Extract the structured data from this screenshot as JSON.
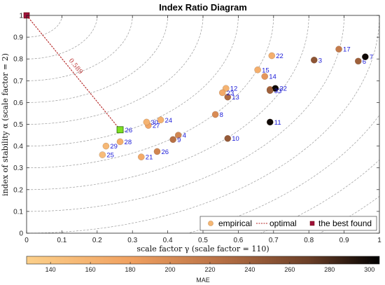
{
  "chart_data": {
    "type": "scatter",
    "title": "Index Ratio Diagram",
    "xlabel": "scale factor γ (scale factor = 110)",
    "ylabel": "index of stability α (scale factor = 2)",
    "xlim": [
      0,
      1
    ],
    "ylim": [
      0,
      1
    ],
    "xticks": [
      "0",
      "0.1",
      "0.2",
      "0.3",
      "0.4",
      "0.5",
      "0.6",
      "0.7",
      "0.8",
      "0.9",
      "1"
    ],
    "yticks": [
      "0",
      "0.1",
      "0.2",
      "0.3",
      "0.4",
      "0.5",
      "0.6",
      "0.7",
      "0.8",
      "0.9",
      "1"
    ],
    "grid": "dashed concentric arcs centered at (0,1)",
    "arc_radii": [
      0.1,
      0.2,
      0.3,
      0.4,
      0.5,
      0.6,
      0.7,
      0.8,
      0.9,
      1.0,
      1.1,
      1.2,
      1.3
    ],
    "legend": {
      "placement": "bottom-right",
      "entries": [
        "empirical",
        "optimal",
        "the best found"
      ]
    },
    "colorbar": {
      "title": "MAE",
      "ticks": [
        "140",
        "160",
        "180",
        "200",
        "220",
        "240",
        "260",
        "280",
        "300"
      ],
      "range": [
        128,
        305
      ]
    },
    "best_found": {
      "x": 0,
      "y": 1
    },
    "optimal_point": {
      "x": 0.265,
      "y": 0.475,
      "label": "26"
    },
    "optimal_distance_label": "0.589",
    "points": [
      {
        "label": "3",
        "x": 0.815,
        "y": 0.795,
        "mae": 250
      },
      {
        "label": "4",
        "x": 0.43,
        "y": 0.45,
        "mae": 205
      },
      {
        "label": "5",
        "x": 0.69,
        "y": 0.66,
        "mae": 225
      },
      {
        "label": "6",
        "x": 0.94,
        "y": 0.79,
        "mae": 240
      },
      {
        "label": "7",
        "x": 0.96,
        "y": 0.81,
        "mae": 300
      },
      {
        "label": "8",
        "x": 0.535,
        "y": 0.545,
        "mae": 200
      },
      {
        "label": "9",
        "x": 0.415,
        "y": 0.43,
        "mae": 225
      },
      {
        "label": "10",
        "x": 0.57,
        "y": 0.435,
        "mae": 245
      },
      {
        "label": "11",
        "x": 0.69,
        "y": 0.51,
        "mae": 300
      },
      {
        "label": "12",
        "x": 0.565,
        "y": 0.665,
        "mae": 160
      },
      {
        "label": "13",
        "x": 0.57,
        "y": 0.625,
        "mae": 230
      },
      {
        "label": "14",
        "x": 0.675,
        "y": 0.72,
        "mae": 190
      },
      {
        "label": "15",
        "x": 0.655,
        "y": 0.75,
        "mae": 165
      },
      {
        "label": "17",
        "x": 0.885,
        "y": 0.845,
        "mae": 215
      },
      {
        "label": "21",
        "x": 0.325,
        "y": 0.35,
        "mae": 170
      },
      {
        "label": "22",
        "x": 0.695,
        "y": 0.815,
        "mae": 165
      },
      {
        "label": "23",
        "x": 0.555,
        "y": 0.645,
        "mae": 170
      },
      {
        "label": "24",
        "x": 0.38,
        "y": 0.52,
        "mae": 160
      },
      {
        "label": "25",
        "x": 0.215,
        "y": 0.36,
        "mae": 150
      },
      {
        "label": "26",
        "x": 0.37,
        "y": 0.375,
        "mae": 205
      },
      {
        "label": "27",
        "x": 0.345,
        "y": 0.495,
        "mae": 175
      },
      {
        "label": "28",
        "x": 0.265,
        "y": 0.42,
        "mae": 165
      },
      {
        "label": "29",
        "x": 0.225,
        "y": 0.4,
        "mae": 155
      },
      {
        "label": "30",
        "x": 0.34,
        "y": 0.51,
        "mae": 160
      },
      {
        "label": "32",
        "x": 0.705,
        "y": 0.665,
        "mae": 300
      },
      {
        "label": "33",
        "x": 0.69,
        "y": 0.655,
        "mae": 240
      }
    ]
  }
}
